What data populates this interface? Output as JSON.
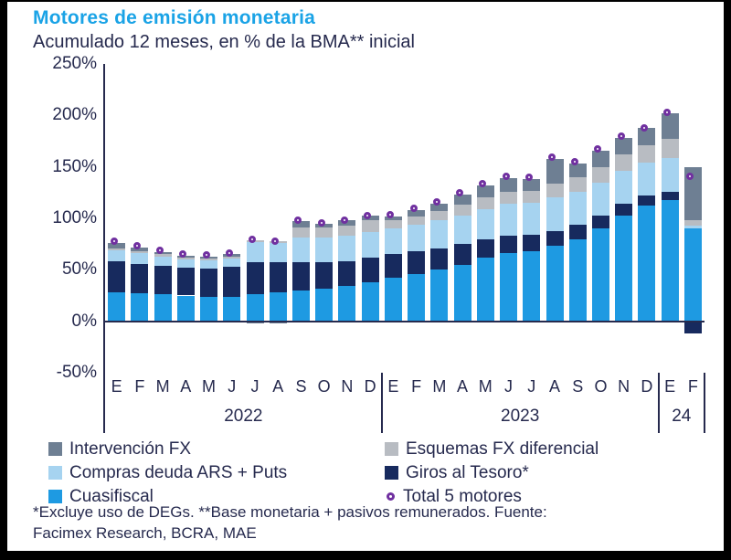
{
  "header": {
    "title": "Motores de emisión monetaria",
    "subtitle": "Acumulado 12 meses, en % de la BMA** inicial"
  },
  "legend": {
    "items": [
      {
        "key": "intervencion-fx",
        "label": "Intervención FX",
        "marker": "square",
        "color": "#6e7f93"
      },
      {
        "key": "esquemas-fx-diferencial",
        "label": "Esquemas FX diferencial",
        "marker": "square",
        "color": "#b8bcc2"
      },
      {
        "key": "compras-deuda-ars-puts",
        "label": "Compras deuda ARS + Puts",
        "marker": "square",
        "color": "#a6d3f0"
      },
      {
        "key": "giros-al-tesoro",
        "label": "Giros al Tesoro*",
        "marker": "square",
        "color": "#172a5e"
      },
      {
        "key": "cuasifiscal",
        "label": "Cuasifiscal",
        "marker": "square",
        "color": "#1e9ae2"
      },
      {
        "key": "total-5-motores",
        "label": "Total 5 motores",
        "marker": "circle",
        "color": "#7030a0"
      }
    ]
  },
  "footnote": {
    "line1": "*Excluye uso de DEGs. **Base monetaria + pasivos remunerados. Fuente:",
    "line2": "Facimex Research, BCRA, MAE"
  },
  "chart_data": {
    "type": "bar",
    "subtype": "stacked-bar-with-total-markers",
    "title": "Motores de emisión monetaria",
    "subtitle": "Acumulado 12 meses, en % de la BMA** inicial",
    "ylabel": "% de la BMA inicial",
    "ylim": [
      -50,
      250
    ],
    "yticks": [
      {
        "value": 250,
        "label": "250%"
      },
      {
        "value": 200,
        "label": "200%"
      },
      {
        "value": 150,
        "label": "150%"
      },
      {
        "value": 100,
        "label": "100%"
      },
      {
        "value": 50,
        "label": "50%"
      },
      {
        "value": 0,
        "label": "0%"
      },
      {
        "value": -50,
        "label": "-50%"
      }
    ],
    "categories": [
      "E",
      "F",
      "M",
      "A",
      "M",
      "J",
      "J",
      "A",
      "S",
      "O",
      "N",
      "D",
      "E",
      "F",
      "M",
      "A",
      "M",
      "J",
      "J",
      "A",
      "S",
      "O",
      "N",
      "D",
      "E",
      "F"
    ],
    "groups": [
      {
        "label": "2022",
        "span": 12
      },
      {
        "label": "2023",
        "span": 12
      },
      {
        "label": "24",
        "span": 2
      }
    ],
    "stack_order_note": "series listed bottom to top",
    "series": [
      {
        "name": "Cuasifiscal",
        "color": "#1e9ae2",
        "values": [
          28,
          27,
          26,
          25,
          24,
          24,
          26,
          28,
          30,
          32,
          34,
          38,
          42,
          46,
          50,
          55,
          62,
          66,
          68,
          73,
          80,
          90,
          103,
          112,
          118,
          90
        ]
      },
      {
        "name": "Giros al Tesoro*",
        "color": "#172a5e",
        "values": [
          30,
          29,
          28,
          27,
          27,
          29,
          31,
          29,
          27,
          25,
          24,
          24,
          23,
          22,
          21,
          20,
          18,
          17,
          16,
          15,
          14,
          13,
          11,
          10,
          8,
          -12
        ]
      },
      {
        "name": "Compras deuda ARS + Puts",
        "color": "#a6d3f0",
        "values": [
          11,
          10,
          9,
          8,
          8,
          8,
          20,
          19,
          24,
          24,
          25,
          25,
          25,
          26,
          27,
          28,
          29,
          31,
          31,
          32,
          32,
          32,
          32,
          32,
          33,
          3
        ]
      },
      {
        "name": "Esquemas FX diferencial",
        "color": "#b8bcc2",
        "values": [
          2,
          2,
          2,
          2,
          2,
          2,
          2,
          2,
          10,
          10,
          10,
          11,
          8,
          8,
          9,
          10,
          11,
          12,
          12,
          14,
          14,
          15,
          16,
          17,
          18,
          5
        ]
      },
      {
        "name": "Intervención FX",
        "color": "#6e7f93",
        "values": [
          5,
          4,
          2,
          2,
          2,
          2,
          -2,
          -2,
          6,
          4,
          5,
          5,
          4,
          6,
          7,
          10,
          12,
          13,
          11,
          24,
          13,
          16,
          16,
          17,
          25,
          52
        ]
      }
    ],
    "totals": {
      "name": "Total 5 motores",
      "color": "#7030a0",
      "values": [
        75,
        71,
        66,
        63,
        62,
        64,
        77,
        75,
        96,
        93,
        96,
        100,
        101,
        107,
        113,
        122,
        131,
        138,
        137,
        157,
        152,
        165,
        177,
        185,
        200,
        138
      ]
    }
  }
}
